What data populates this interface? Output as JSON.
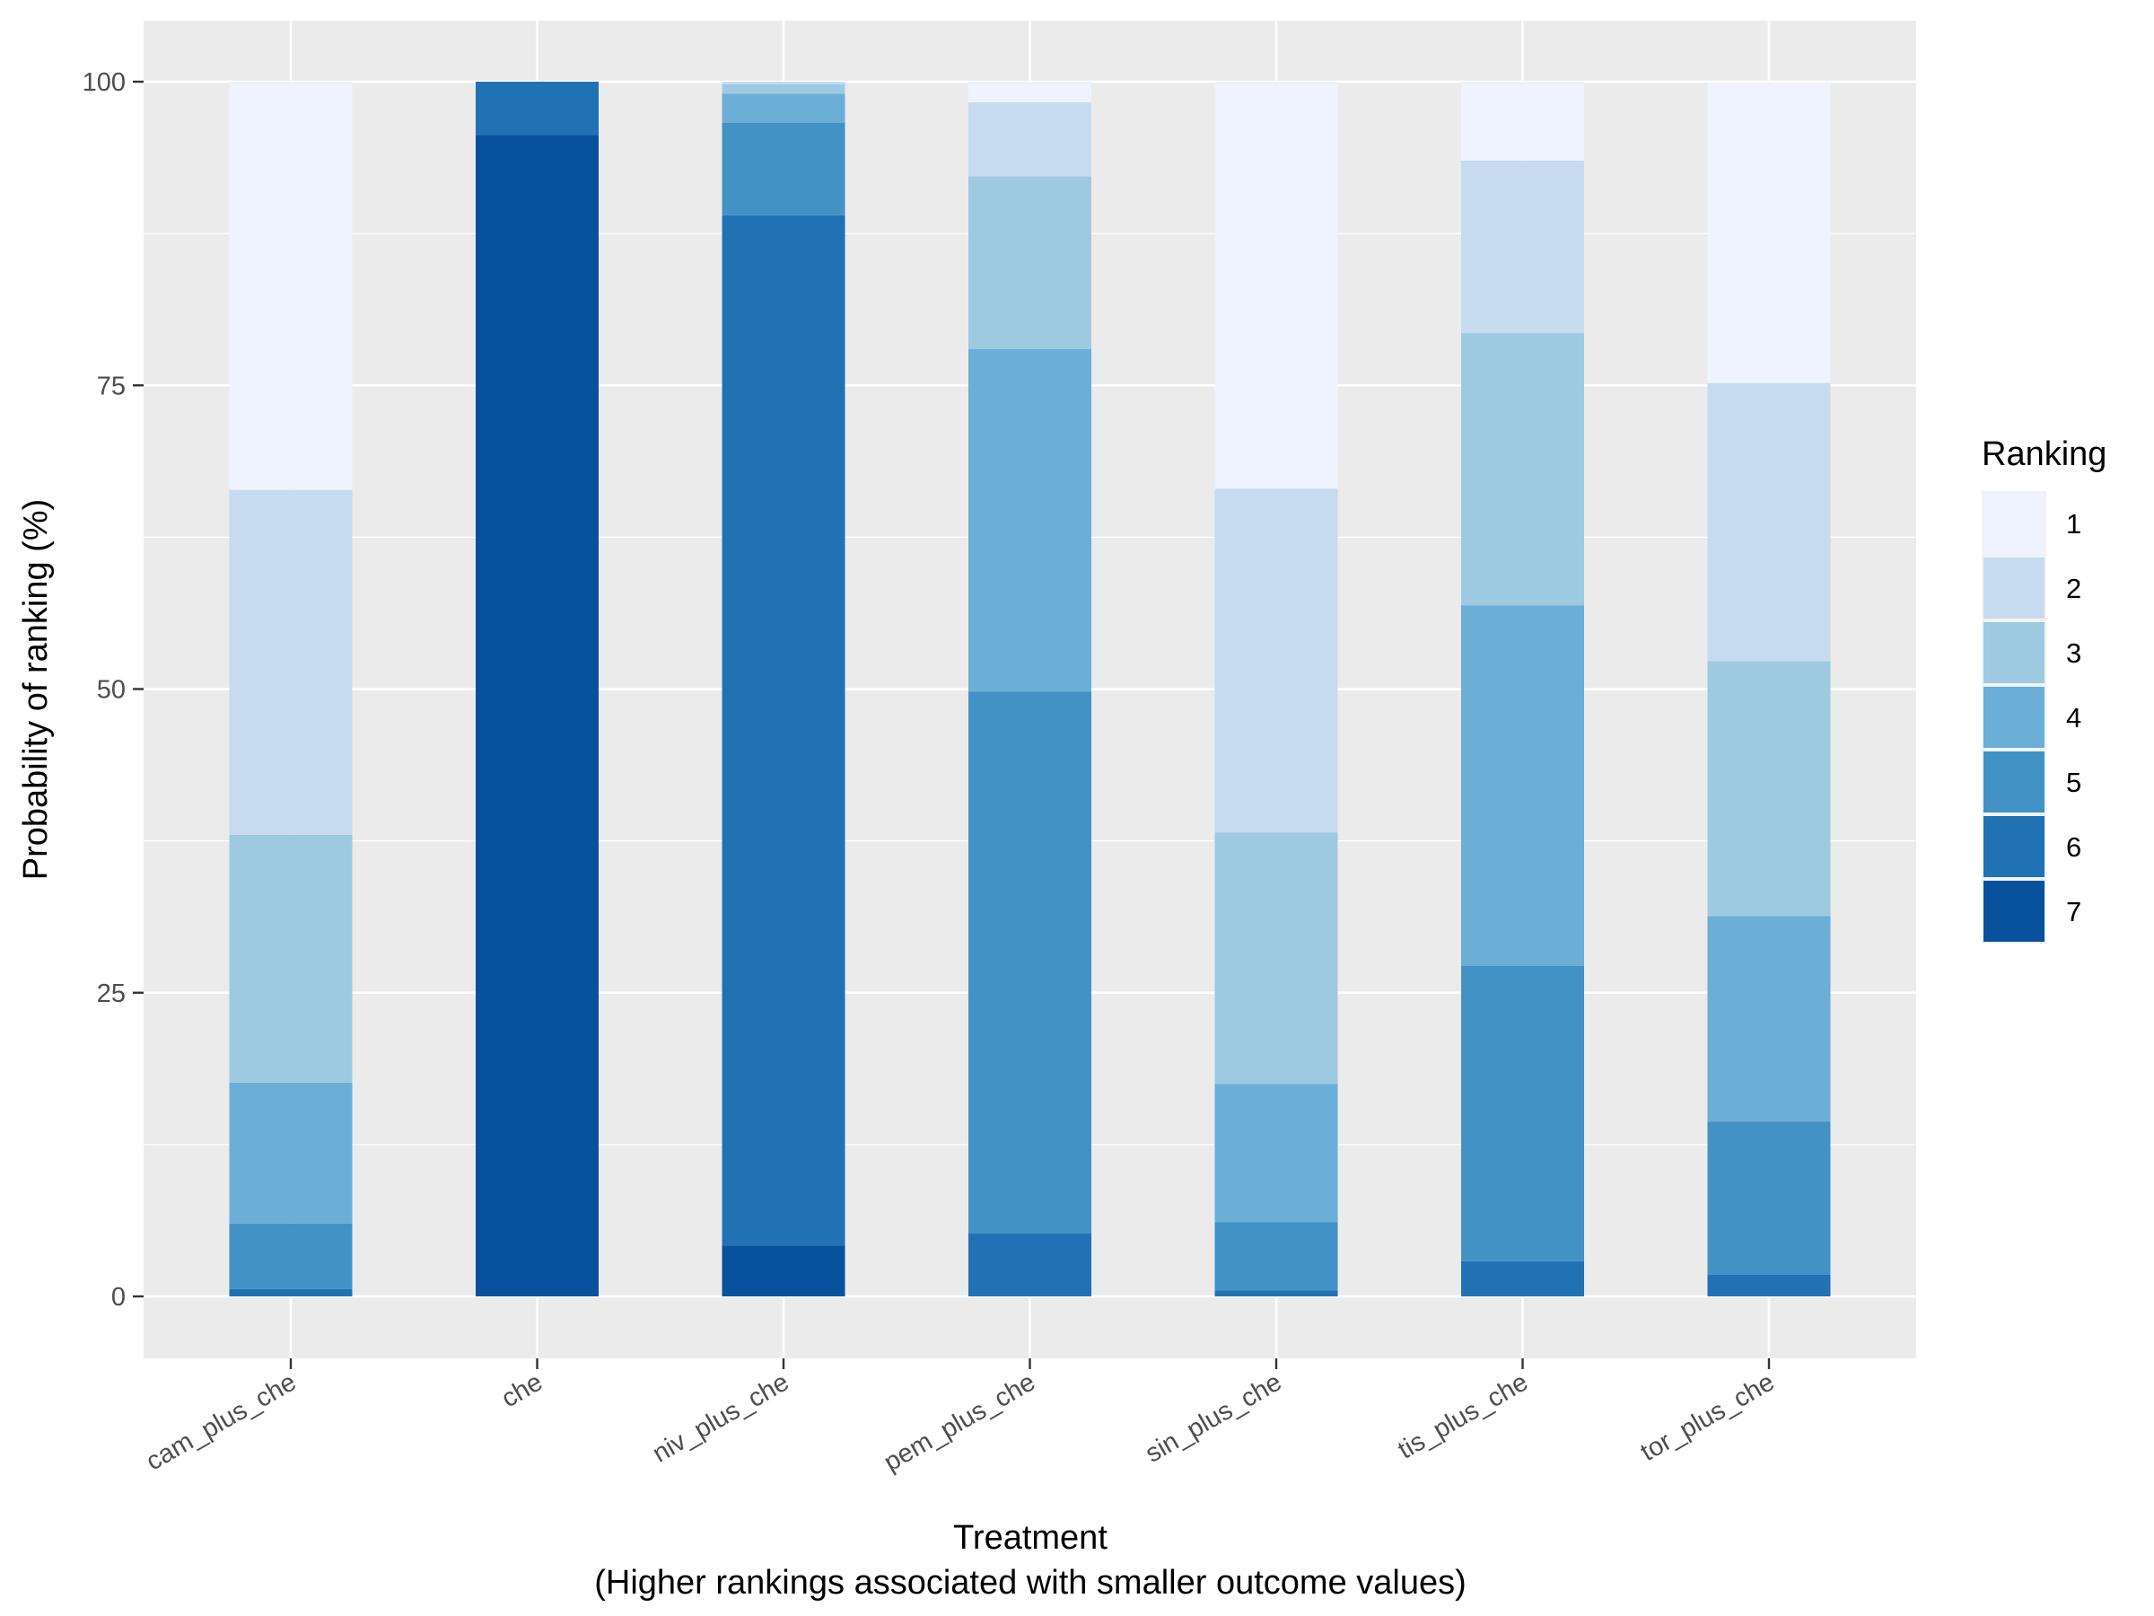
{
  "chart_data": {
    "type": "bar",
    "stacked": true,
    "categories": [
      "cam_plus_che",
      "che",
      "niv_plus_che",
      "pem_plus_che",
      "sin_plus_che",
      "tis_plus_che",
      "tor_plus_che"
    ],
    "series": [
      {
        "name": "1",
        "color": "#EFF3FF",
        "values": [
          33.6,
          0,
          0,
          1.7,
          33.5,
          6.5,
          24.7
        ]
      },
      {
        "name": "2",
        "color": "#C6DBEF",
        "values": [
          28.4,
          0,
          0.2,
          6.1,
          28.3,
          14.2,
          22.9
        ]
      },
      {
        "name": "3",
        "color": "#9ECAE1",
        "values": [
          20.4,
          0,
          0.8,
          14.2,
          20.7,
          22.4,
          21.0
        ]
      },
      {
        "name": "4",
        "color": "#6BAED6",
        "values": [
          11.6,
          0,
          2.4,
          28.2,
          11.4,
          29.7,
          16.9
        ]
      },
      {
        "name": "5",
        "color": "#4292C6",
        "values": [
          5.4,
          0,
          7.6,
          44.6,
          5.6,
          24.3,
          12.6
        ]
      },
      {
        "name": "6",
        "color": "#2171B5",
        "values": [
          0.6,
          4.4,
          84.8,
          5.2,
          0.5,
          2.9,
          1.8
        ]
      },
      {
        "name": "7",
        "color": "#08519C",
        "values": [
          0,
          95.6,
          4.2,
          0,
          0,
          0,
          0
        ]
      }
    ],
    "xlabel": "Treatment",
    "xlabel_line2": "(Higher rankings associated with smaller outcome values)",
    "ylabel": "Probability of ranking (%)",
    "ylim": [
      0,
      100
    ],
    "yticks": [
      0,
      25,
      50,
      75,
      100
    ],
    "ytick_labels": [
      "0",
      "25",
      "50",
      "75",
      "100"
    ],
    "legend_title": "Ranking",
    "legend_position": "right",
    "grid": true,
    "panel_background": "#EBEBEB"
  }
}
